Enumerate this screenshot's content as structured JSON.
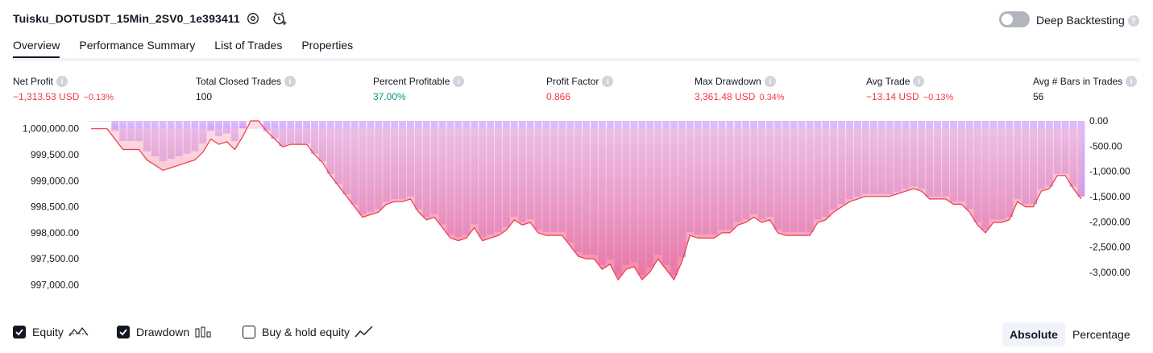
{
  "header": {
    "strategy_title": "Tuisku_DOTUSDT_15Min_2SV0_1e393411",
    "settings_icon": "gear-icon",
    "alert_icon": "alarm-add-icon",
    "deep_backtesting_label": "Deep Backtesting",
    "deep_backtesting_enabled": false
  },
  "tabs": [
    {
      "label": "Overview",
      "active": true
    },
    {
      "label": "Performance Summary",
      "active": false
    },
    {
      "label": "List of Trades",
      "active": false
    },
    {
      "label": "Properties",
      "active": false
    }
  ],
  "metrics": [
    {
      "label": "Net Profit",
      "value": "−1,313.53 USD",
      "pct": "−0.13%",
      "color": "#f23645"
    },
    {
      "label": "Total Closed Trades",
      "value": "100",
      "pct": "",
      "color": "#131722"
    },
    {
      "label": "Percent Profitable",
      "value": "37.00%",
      "pct": "",
      "color": "#089981"
    },
    {
      "label": "Profit Factor",
      "value": "0.866",
      "pct": "",
      "color": "#f23645"
    },
    {
      "label": "Max Drawdown",
      "value": "3,361.48 USD",
      "pct": "0.34%",
      "color": "#f23645"
    },
    {
      "label": "Avg Trade",
      "value": "−13.14 USD",
      "pct": "−0.13%",
      "color": "#f23645"
    },
    {
      "label": "Avg # Bars in Trades",
      "value": "56",
      "pct": "",
      "color": "#131722"
    }
  ],
  "chart_data": {
    "type": "line",
    "left_axis_ticks": [
      "1,000,000.00",
      "999,500.00",
      "999,000.00",
      "998,500.00",
      "998,000.00",
      "997,500.00",
      "997,000.00"
    ],
    "right_axis_ticks": [
      "0.00",
      "-500.00",
      "-1,000.00",
      "-1,500.00",
      "-2,000.00",
      "-2,500.00",
      "-3,000.00"
    ],
    "x_ticks": [
      "1",
      "8",
      "15",
      "22",
      "29",
      "36",
      "43",
      "50",
      "57",
      "64",
      "71",
      "78",
      "85",
      "92",
      "99"
    ],
    "equity_ylim": [
      996900,
      1000150
    ],
    "drawdown_ylim": [
      -3350,
      0
    ],
    "series": [
      {
        "values": [
          1000000,
          1000000,
          1000000,
          999800,
          999600,
          999600,
          999600,
          999400,
          999300,
          999200,
          999250,
          999300,
          999350,
          999400,
          999550,
          999800,
          999700,
          999750,
          999600,
          999850,
          1000150,
          1000150,
          999950,
          999800,
          999650,
          999700,
          999700,
          999700,
          999500,
          999350,
          999100,
          998900,
          998700,
          998500,
          998300,
          998350,
          998400,
          998550,
          998600,
          998600,
          998650,
          998400,
          998250,
          998300,
          998100,
          997900,
          997850,
          997900,
          998100,
          997850,
          997900,
          997950,
          998050,
          998250,
          998150,
          998200,
          998000,
          997950,
          997950,
          997950,
          997750,
          997550,
          997500,
          997500,
          997300,
          997400,
          997100,
          997300,
          997350,
          997100,
          997250,
          997500,
          997300,
          997100,
          997450,
          997950,
          997900,
          997900,
          997900,
          998000,
          998000,
          998150,
          998200,
          998300,
          998200,
          998250,
          998000,
          997950,
          997950,
          997950,
          997950,
          998200,
          998250,
          998400,
          998500,
          998600,
          998650,
          998700,
          998700,
          998700,
          998700,
          998750,
          998800,
          998850,
          998800,
          998650,
          998650,
          998650,
          998550,
          998550,
          998400,
          998150,
          998000,
          998200,
          998200,
          998250,
          998600,
          998500,
          998500,
          998800,
          998850,
          999100,
          999100,
          998850,
          998650
        ]
      }
    ]
  },
  "legend": [
    {
      "label": "Equity",
      "checked": true,
      "icon": "equity-line-icon"
    },
    {
      "label": "Drawdown",
      "checked": true,
      "icon": "drawdown-bars-icon"
    },
    {
      "label": "Buy & hold equity",
      "checked": false,
      "icon": "buy-hold-line-icon"
    }
  ],
  "modes": [
    {
      "label": "Absolute",
      "active": true
    },
    {
      "label": "Percentage",
      "active": false
    }
  ]
}
